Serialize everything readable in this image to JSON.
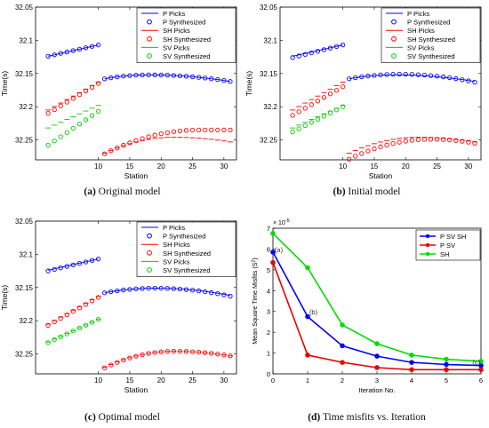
{
  "chart_data": [
    {
      "type": "scatter",
      "caption_label": "(a)",
      "caption_text": "Original model",
      "xlabel": "Station",
      "ylabel": "Time(s)",
      "xlim": [
        0,
        32
      ],
      "ylim": [
        32.05,
        32.28
      ],
      "y_reversed": true,
      "xticks": [
        "10",
        "15",
        "20",
        "25",
        "30"
      ],
      "yticks": [
        "32.05",
        "32.1",
        "32.15",
        "32.2",
        "32.25"
      ],
      "legend": [
        "P Picks",
        "P Synthesized",
        "SH Picks",
        "SH Synthesized",
        "SV Picks",
        "SV Synthesized"
      ],
      "series": [
        {
          "name": "P Picks",
          "kind": "line",
          "color": "#0000ff",
          "segments": [
            {
              "x0": 2,
              "x1": 10,
              "y0": 32.124,
              "y1": 32.107
            },
            {
              "x0": 11,
              "x1": 31,
              "y0": 32.158,
              "y1": 32.162,
              "peak": 32.152,
              "peak_x": 18
            }
          ]
        },
        {
          "name": "P Synthesized",
          "kind": "marker",
          "color": "#0000ff",
          "segments": [
            {
              "x0": 2,
              "x1": 10,
              "y0": 32.124,
              "y1": 32.107
            },
            {
              "x0": 11,
              "x1": 31,
              "y0": 32.158,
              "y1": 32.162,
              "peak": 32.152,
              "peak_x": 18
            }
          ]
        },
        {
          "name": "SH Picks",
          "kind": "dash",
          "color": "#ff0000",
          "segments": [
            {
              "x0": 2,
              "x1": 10,
              "y0": 32.205,
              "y1": 32.163
            },
            {
              "x0": 11,
              "x1": 31,
              "y0": 32.27,
              "y1": 32.253,
              "peak": 32.246,
              "peak_x": 22
            }
          ]
        },
        {
          "name": "SH Synthesized",
          "kind": "marker",
          "color": "#ff0000",
          "segments": [
            {
              "x0": 2,
              "x1": 10,
              "y0": 32.21,
              "y1": 32.165
            },
            {
              "x0": 11,
              "x1": 31,
              "y0": 32.271,
              "y1": 32.235,
              "peak": 32.235,
              "peak_x": 26
            }
          ]
        },
        {
          "name": "SV Picks",
          "kind": "dash",
          "color": "#00cc00",
          "segments": [
            {
              "x0": 2,
              "x1": 10,
              "y0": 32.232,
              "y1": 32.198
            }
          ]
        },
        {
          "name": "SV Synthesized",
          "kind": "marker",
          "color": "#00cc00",
          "segments": [
            {
              "x0": 2,
              "x1": 10,
              "y0": 32.258,
              "y1": 32.207
            }
          ]
        }
      ]
    },
    {
      "type": "scatter",
      "caption_label": "(b)",
      "caption_text": "Initial model",
      "xlabel": "Station",
      "ylabel": "Time(s)",
      "xlim": [
        0,
        32
      ],
      "ylim": [
        32.05,
        32.28
      ],
      "y_reversed": true,
      "xticks": [
        "10",
        "15",
        "20",
        "25",
        "30"
      ],
      "yticks": [
        "32.05",
        "32.1",
        "32.15",
        "32.2",
        "32.25"
      ],
      "legend": [
        "P Picks",
        "P Synthesized",
        "SH Picks",
        "SH Synthesized",
        "SV Picks",
        "SV Synthesized"
      ],
      "series": [
        {
          "name": "P Picks",
          "kind": "line",
          "color": "#0000ff",
          "segments": [
            {
              "x0": 2,
              "x1": 10,
              "y0": 32.124,
              "y1": 32.107
            },
            {
              "x0": 11,
              "x1": 31,
              "y0": 32.158,
              "y1": 32.162,
              "peak": 32.152,
              "peak_x": 18
            }
          ]
        },
        {
          "name": "P Synthesized",
          "kind": "marker",
          "color": "#0000ff",
          "segments": [
            {
              "x0": 2,
              "x1": 10,
              "y0": 32.126,
              "y1": 32.107
            },
            {
              "x0": 11,
              "x1": 31,
              "y0": 32.158,
              "y1": 32.163,
              "peak": 32.151,
              "peak_x": 19
            }
          ]
        },
        {
          "name": "SH Picks",
          "kind": "dash",
          "color": "#ff0000",
          "segments": [
            {
              "x0": 2,
              "x1": 10,
              "y0": 32.205,
              "y1": 32.163
            },
            {
              "x0": 11,
              "x1": 31,
              "y0": 32.27,
              "y1": 32.253,
              "peak": 32.246,
              "peak_x": 22
            }
          ]
        },
        {
          "name": "SH Synthesized",
          "kind": "marker",
          "color": "#ff0000",
          "segments": [
            {
              "x0": 2,
              "x1": 10,
              "y0": 32.213,
              "y1": 32.17
            },
            {
              "x0": 11,
              "x1": 31,
              "y0": 32.279,
              "y1": 32.255,
              "peak": 32.249,
              "peak_x": 24
            }
          ]
        },
        {
          "name": "SV Picks",
          "kind": "dash",
          "color": "#00cc00",
          "segments": [
            {
              "x0": 2,
              "x1": 10,
              "y0": 32.232,
              "y1": 32.198
            }
          ]
        },
        {
          "name": "SV Synthesized",
          "kind": "marker",
          "color": "#00cc00",
          "segments": [
            {
              "x0": 2,
              "x1": 10,
              "y0": 32.238,
              "y1": 32.2
            }
          ]
        }
      ]
    },
    {
      "type": "scatter",
      "caption_label": "(c)",
      "caption_text": "Optimal model",
      "xlabel": "Station",
      "ylabel": "Time(s)",
      "xlim": [
        0,
        32
      ],
      "ylim": [
        32.05,
        32.28
      ],
      "y_reversed": true,
      "xticks": [
        "10",
        "15",
        "20",
        "25",
        "30"
      ],
      "yticks": [
        "32.05",
        "32.1",
        "32.15",
        "32.2",
        "32.25"
      ],
      "legend": [
        "P Picks",
        "P Synthesized",
        "SH Picks",
        "SH Synthesized",
        "SV Picks",
        "SV Synthesized"
      ],
      "series": [
        {
          "name": "P Picks",
          "kind": "line",
          "color": "#0000ff",
          "segments": [
            {
              "x0": 2,
              "x1": 10,
              "y0": 32.124,
              "y1": 32.107
            },
            {
              "x0": 11,
              "x1": 31,
              "y0": 32.158,
              "y1": 32.162,
              "peak": 32.151,
              "peak_x": 19
            }
          ]
        },
        {
          "name": "P Synthesized",
          "kind": "marker",
          "color": "#0000ff",
          "segments": [
            {
              "x0": 2,
              "x1": 10,
              "y0": 32.125,
              "y1": 32.107
            },
            {
              "x0": 11,
              "x1": 31,
              "y0": 32.158,
              "y1": 32.163,
              "peak": 32.151,
              "peak_x": 19
            }
          ]
        },
        {
          "name": "SH Picks",
          "kind": "dash",
          "color": "#ff0000",
          "segments": [
            {
              "x0": 2,
              "x1": 10,
              "y0": 32.205,
              "y1": 32.163
            },
            {
              "x0": 11,
              "x1": 31,
              "y0": 32.27,
              "y1": 32.253,
              "peak": 32.246,
              "peak_x": 22
            }
          ]
        },
        {
          "name": "SH Synthesized",
          "kind": "marker",
          "color": "#ff0000",
          "segments": [
            {
              "x0": 2,
              "x1": 10,
              "y0": 32.207,
              "y1": 32.165
            },
            {
              "x0": 11,
              "x1": 31,
              "y0": 32.271,
              "y1": 32.253,
              "peak": 32.246,
              "peak_x": 22
            }
          ]
        },
        {
          "name": "SV Picks",
          "kind": "dash",
          "color": "#00cc00",
          "segments": [
            {
              "x0": 2,
              "x1": 10,
              "y0": 32.232,
              "y1": 32.198
            }
          ]
        },
        {
          "name": "SV Synthesized",
          "kind": "marker",
          "color": "#00cc00",
          "segments": [
            {
              "x0": 2,
              "x1": 10,
              "y0": 32.233,
              "y1": 32.198
            }
          ]
        }
      ]
    },
    {
      "type": "line",
      "caption_label": "(d)",
      "caption_text": "Time misfits vs. Iteration",
      "xlabel": "Iteration No.",
      "ylabel": "Mean Square Time Misfits (S",
      "ylabel_sup": "2",
      "ylabel_close": ")",
      "y_scale_label": "× 10",
      "y_scale_exp": "-5",
      "xlim": [
        0,
        6
      ],
      "ylim": [
        0,
        7
      ],
      "x": [
        0,
        1,
        2,
        3,
        4,
        5,
        6
      ],
      "xticks": [
        "0",
        "1",
        "2",
        "3",
        "4",
        "5",
        "6"
      ],
      "yticks": [
        "0",
        "1",
        "2",
        "3",
        "4",
        "5",
        "6",
        "7"
      ],
      "annotations": [
        {
          "text": "(a)",
          "x": 0.05,
          "y": 5.85
        },
        {
          "text": "(b)",
          "x": 1.05,
          "y": 2.85
        },
        {
          "text": "(c)",
          "x": 5.75,
          "y": 0.45
        }
      ],
      "legend": [
        "P SV SH",
        "P SV",
        "SH"
      ],
      "series": [
        {
          "name": "P SV SH",
          "color": "#0000ff",
          "values": [
            5.85,
            2.75,
            1.35,
            0.85,
            0.55,
            0.45,
            0.4
          ]
        },
        {
          "name": "P SV",
          "color": "#ee0000",
          "values": [
            5.35,
            0.9,
            0.55,
            0.3,
            0.2,
            0.2,
            0.2
          ]
        },
        {
          "name": "SH",
          "color": "#00dd00",
          "values": [
            6.75,
            5.1,
            2.35,
            1.45,
            0.9,
            0.7,
            0.6
          ]
        }
      ]
    }
  ]
}
